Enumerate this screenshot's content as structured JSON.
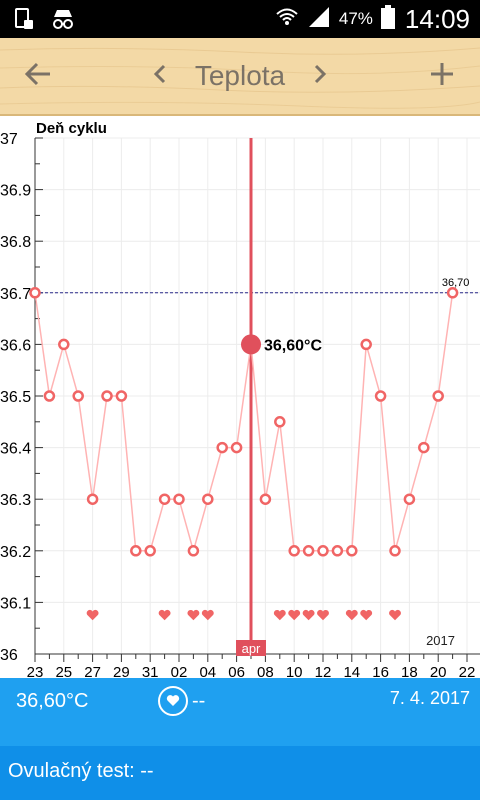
{
  "status_bar": {
    "battery_percent": "47%",
    "time": "14:09",
    "icons": [
      "sim-card-icon",
      "incognito-icon",
      "wifi-icon",
      "signal-icon",
      "battery-icon"
    ]
  },
  "app_bar": {
    "title": "Teplota",
    "back_icon": "arrow-left-icon",
    "prev_icon": "chevron-left-icon",
    "next_icon": "chevron-right-icon",
    "add_icon": "plus-icon"
  },
  "chart_data": {
    "type": "line",
    "ylabel": "Deň cyklu",
    "ylim": [
      36.0,
      37.0
    ],
    "y_ticks": [
      "37",
      "36.9",
      "36.8",
      "36.7",
      "36.6",
      "36.5",
      "36.4",
      "36.3",
      "36.2",
      "36.1",
      "36"
    ],
    "x_tick_labels": [
      "23",
      "25",
      "27",
      "29",
      "31",
      "02",
      "04",
      "06",
      "08",
      "10",
      "12",
      "14",
      "16",
      "18",
      "20",
      "22"
    ],
    "points": [
      {
        "x": "23",
        "y": 36.7
      },
      {
        "x": "24",
        "y": 36.5
      },
      {
        "x": "25",
        "y": 36.6
      },
      {
        "x": "26",
        "y": 36.5
      },
      {
        "x": "27",
        "y": 36.3
      },
      {
        "x": "28",
        "y": 36.5
      },
      {
        "x": "29",
        "y": 36.5
      },
      {
        "x": "30",
        "y": 36.2
      },
      {
        "x": "31",
        "y": 36.2
      },
      {
        "x": "01",
        "y": 36.3
      },
      {
        "x": "02",
        "y": 36.3
      },
      {
        "x": "03",
        "y": 36.2
      },
      {
        "x": "04",
        "y": 36.3
      },
      {
        "x": "05",
        "y": 36.4
      },
      {
        "x": "06",
        "y": 36.4
      },
      {
        "x": "07",
        "y": 36.6
      },
      {
        "x": "08",
        "y": 36.3
      },
      {
        "x": "09",
        "y": 36.45
      },
      {
        "x": "10",
        "y": 36.2
      },
      {
        "x": "11",
        "y": 36.2
      },
      {
        "x": "12",
        "y": 36.2
      },
      {
        "x": "13",
        "y": 36.2
      },
      {
        "x": "14",
        "y": 36.2
      },
      {
        "x": "15",
        "y": 36.6
      },
      {
        "x": "16",
        "y": 36.5
      },
      {
        "x": "17",
        "y": 36.2
      },
      {
        "x": "18",
        "y": 36.3
      },
      {
        "x": "19",
        "y": 36.4
      },
      {
        "x": "20",
        "y": 36.5
      },
      {
        "x": "21",
        "y": 36.7
      }
    ],
    "heart_days": [
      "27",
      "01",
      "03",
      "04",
      "09",
      "10",
      "11",
      "12",
      "14",
      "15",
      "17"
    ],
    "reference_line": {
      "y": 36.7,
      "label": "36,70"
    },
    "selected": {
      "x": "07",
      "y": 36.6,
      "label": "36,60°C",
      "month_label": "apr"
    },
    "year_label": "2017",
    "colors": {
      "line": "#ffb3b3",
      "marker": "#f06565",
      "selected": "#e0505c",
      "reference": "#2a2a8a",
      "grid": "#ececec"
    }
  },
  "info_bar": {
    "temperature": "36,60°C",
    "heart_icon": "heart-icon",
    "heart_value": "--",
    "date": "7. 4. 2017"
  },
  "ovulation": {
    "label": "Ovulačný test: --"
  }
}
